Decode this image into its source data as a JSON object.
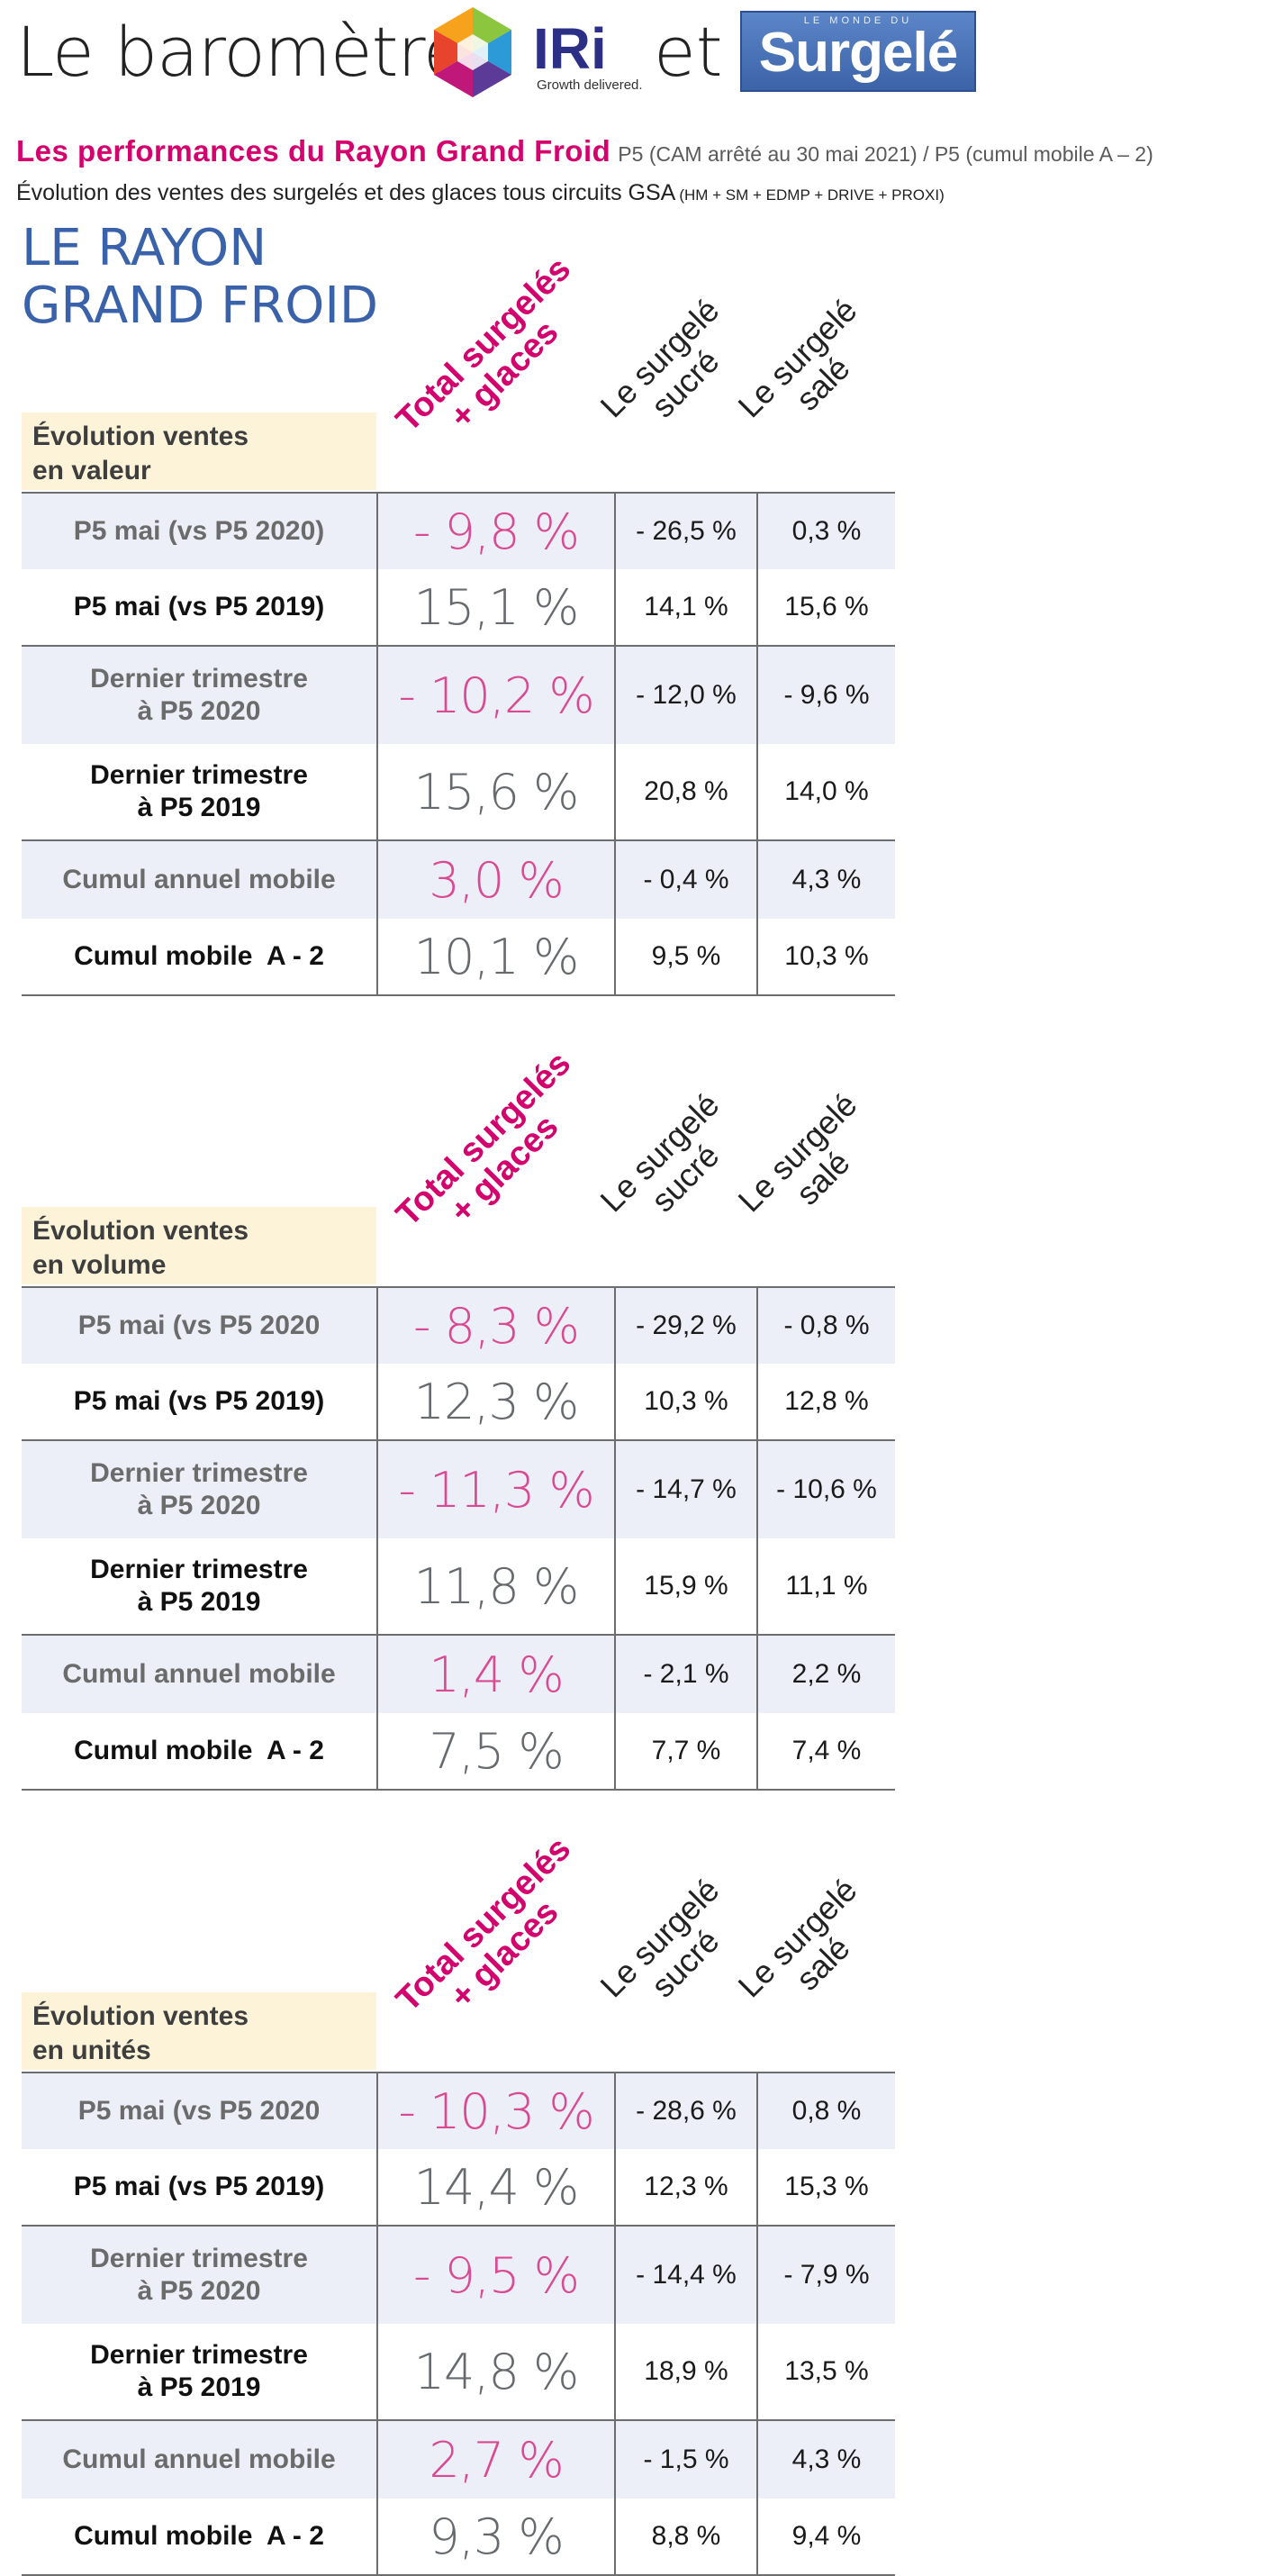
{
  "header": {
    "title_part1": "Le baromètre",
    "iri_logo_text": "IRi",
    "iri_tagline": "Growth delivered.",
    "and_word": "et",
    "surgele_logo_top": "LE MONDE DU",
    "surgele_logo_main": "Surgelé",
    "colors": {
      "magenta": "#d4006e",
      "blue_title": "#3a62aa",
      "logo_blue": "#3c63a8",
      "iri_navy": "#2b2f86"
    }
  },
  "subtitle": {
    "main": "Les performances du Rayon Grand Froid",
    "note": "P5 (CAM arrêté au 30 mai 2021) / P5 (cumul mobile A – 2)"
  },
  "description": {
    "main": "Évolution des ventes des surgelés et des glaces tous circuits GSA",
    "note": "(HM + SM + EDMP + DRIVE + PROXI)"
  },
  "section_title": "LE RAYON\nGRAND FROID",
  "columns": {
    "total": "Total surgelés\n+ glaces",
    "sucre": "Le surgelé\nsucré",
    "sale": "Le surgelé\nsalé"
  },
  "tables": [
    {
      "label": "Évolution ventes\nen valeur",
      "rows": [
        {
          "label": "P5 mai (vs P5 2020)",
          "total": "- 9,8 %",
          "sucre": "- 26,5 %",
          "sale": "0,3 %"
        },
        {
          "label": "P5 mai (vs P5 2019)",
          "total": "15,1 %",
          "sucre": "14,1 %",
          "sale": "15,6 %"
        },
        {
          "label": "Dernier trimestre\nà P5 2020",
          "total": "- 10,2 %",
          "sucre": "- 12,0 %",
          "sale": "- 9,6 %"
        },
        {
          "label": "Dernier trimestre\nà P5 2019",
          "total": "15,6 %",
          "sucre": "20,8 %",
          "sale": "14,0 %"
        },
        {
          "label": "Cumul annuel mobile",
          "total": "3,0 %",
          "sucre": "- 0,4 %",
          "sale": "4,3 %"
        },
        {
          "label": "Cumul mobile  A - 2",
          "total": "10,1 %",
          "sucre": "9,5 %",
          "sale": "10,3 %"
        }
      ]
    },
    {
      "label": "Évolution ventes\nen volume",
      "rows": [
        {
          "label": "P5 mai (vs P5 2020",
          "total": "- 8,3 %",
          "sucre": "- 29,2 %",
          "sale": "- 0,8 %"
        },
        {
          "label": "P5 mai (vs P5 2019)",
          "total": "12,3 %",
          "sucre": "10,3 %",
          "sale": "12,8 %"
        },
        {
          "label": "Dernier trimestre\nà P5 2020",
          "total": "- 11,3 %",
          "sucre": "- 14,7 %",
          "sale": "- 10,6 %"
        },
        {
          "label": "Dernier trimestre\nà P5 2019",
          "total": "11,8 %",
          "sucre": "15,9 %",
          "sale": "11,1 %"
        },
        {
          "label": "Cumul annuel mobile",
          "total": "1,4 %",
          "sucre": "- 2,1 %",
          "sale": "2,2 %"
        },
        {
          "label": "Cumul mobile  A - 2",
          "total": "7,5 %",
          "sucre": "7,7 %",
          "sale": "7,4 %"
        }
      ]
    },
    {
      "label": "Évolution ventes\nen unités",
      "rows": [
        {
          "label": "P5 mai (vs P5 2020",
          "total": "- 10,3 %",
          "sucre": "- 28,6 %",
          "sale": "0,8 %"
        },
        {
          "label": "P5 mai (vs P5 2019)",
          "total": "14,4 %",
          "sucre": "12,3 %",
          "sale": "15,3 %"
        },
        {
          "label": "Dernier trimestre\nà P5 2020",
          "total": "- 9,5 %",
          "sucre": "- 14,4 %",
          "sale": "- 7,9 %"
        },
        {
          "label": "Dernier trimestre\nà P5 2019",
          "total": "14,8 %",
          "sucre": "18,9 %",
          "sale": "13,5 %"
        },
        {
          "label": "Cumul annuel mobile",
          "total": "2,7 %",
          "sucre": "- 1,5 %",
          "sale": "4,3 %"
        },
        {
          "label": "Cumul mobile  A - 2",
          "total": "9,3 %",
          "sucre": "8,8 %",
          "sale": "9,4 %"
        }
      ]
    }
  ]
}
